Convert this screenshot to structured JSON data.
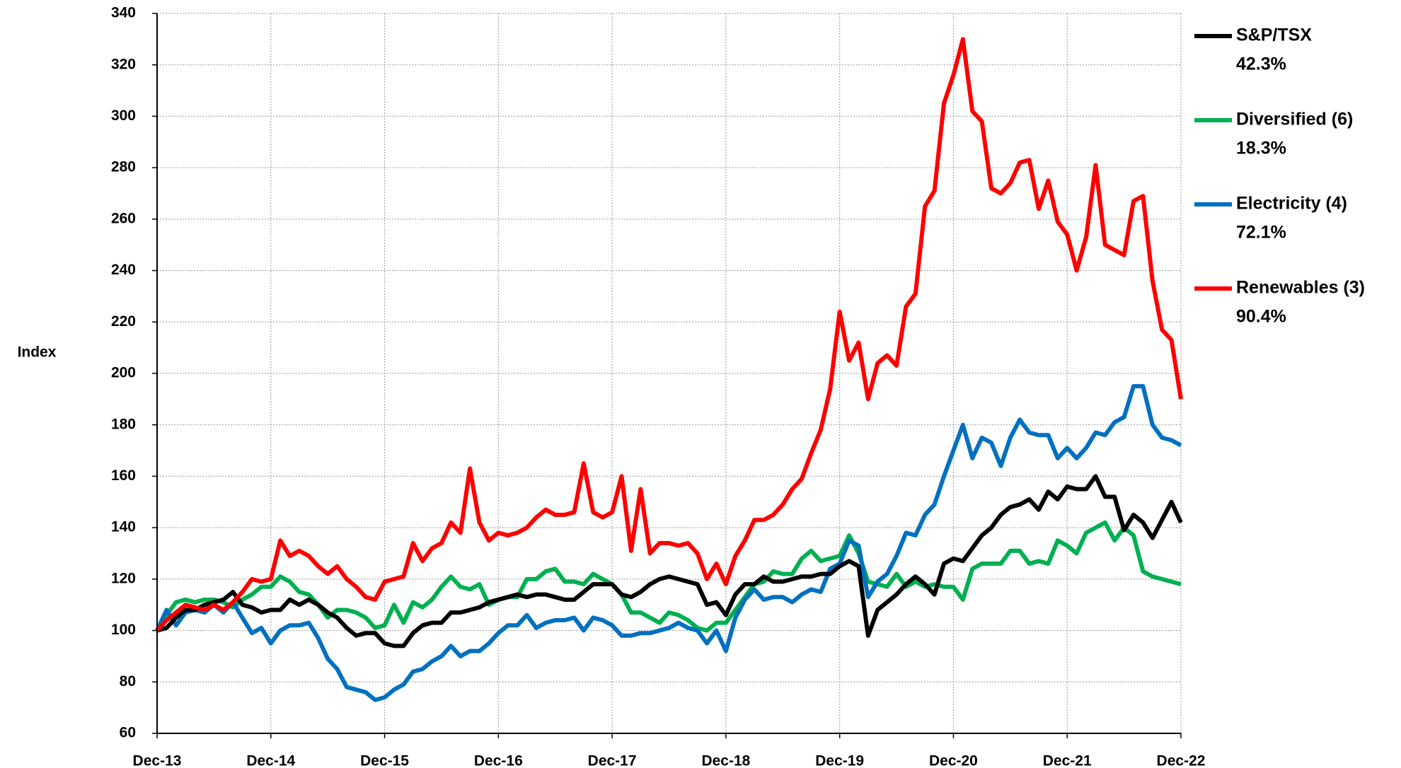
{
  "chart_data": {
    "type": "line",
    "y_label": "Index",
    "categories": [
      "Dec-13",
      null,
      null,
      null,
      null,
      null,
      null,
      null,
      null,
      null,
      null,
      null,
      "Dec-14",
      null,
      null,
      null,
      null,
      null,
      null,
      null,
      null,
      null,
      null,
      null,
      "Dec-15",
      null,
      null,
      null,
      null,
      null,
      null,
      null,
      null,
      null,
      null,
      null,
      "Dec-16",
      null,
      null,
      null,
      null,
      null,
      null,
      null,
      null,
      null,
      null,
      null,
      "Dec-17",
      null,
      null,
      null,
      null,
      null,
      null,
      null,
      null,
      null,
      null,
      null,
      "Dec-18",
      null,
      null,
      null,
      null,
      null,
      null,
      null,
      null,
      null,
      null,
      null,
      "Dec-19",
      null,
      null,
      null,
      null,
      null,
      null,
      null,
      null,
      null,
      null,
      null,
      "Dec-20",
      null,
      null,
      null,
      null,
      null,
      null,
      null,
      null,
      null,
      null,
      null,
      "Dec-21",
      null,
      null,
      null,
      null,
      null,
      null,
      null,
      null,
      null,
      null,
      null,
      "Dec-22"
    ],
    "ylim": [
      60,
      340
    ],
    "yticks": [
      60,
      80,
      100,
      120,
      140,
      160,
      180,
      200,
      220,
      240,
      260,
      280,
      300,
      320,
      340
    ],
    "grid": true,
    "series": [
      {
        "name": "S&P/TSX",
        "total_return": "42.3%",
        "color": "#000000",
        "values": [
          100,
          101,
          105,
          108,
          108,
          110,
          111,
          112,
          115,
          110,
          109,
          107,
          108,
          108,
          112,
          110,
          112,
          110,
          107,
          105,
          101,
          98,
          99,
          99,
          95,
          94,
          94,
          99,
          102,
          103,
          103,
          107,
          107,
          108,
          109,
          111,
          112,
          113,
          114,
          113,
          114,
          114,
          113,
          112,
          112,
          115,
          118,
          118,
          118,
          114,
          113,
          115,
          118,
          120,
          121,
          120,
          119,
          118,
          110,
          111,
          106,
          114,
          118,
          118,
          121,
          119,
          119,
          120,
          121,
          121,
          122,
          122,
          125,
          127,
          125,
          98,
          108,
          111,
          114,
          118,
          121,
          118,
          114,
          126,
          128,
          127,
          132,
          137,
          140,
          145,
          148,
          149,
          151,
          147,
          154,
          151,
          156,
          155,
          155,
          160,
          152,
          152,
          139,
          145,
          142,
          136,
          143,
          150,
          142
        ]
      },
      {
        "name": "Diversified (6)",
        "total_return": "18.3%",
        "color": "#00b050",
        "values": [
          100,
          106,
          111,
          112,
          111,
          112,
          112,
          111,
          109,
          112,
          114,
          117,
          117,
          121,
          119,
          115,
          114,
          110,
          105,
          108,
          108,
          107,
          105,
          101,
          102,
          110,
          103,
          111,
          109,
          112,
          117,
          121,
          117,
          116,
          118,
          110,
          112,
          113,
          113,
          120,
          120,
          123,
          124,
          119,
          119,
          118,
          122,
          120,
          118,
          114,
          107,
          107,
          105,
          103,
          107,
          106,
          104,
          101,
          100,
          103,
          103,
          108,
          113,
          118,
          119,
          123,
          122,
          122,
          128,
          131,
          127,
          128,
          129,
          137,
          130,
          119,
          118,
          117,
          122,
          117,
          119,
          117,
          118,
          117,
          117,
          112,
          124,
          126,
          126,
          126,
          131,
          131,
          126,
          127,
          126,
          135,
          133,
          130,
          138,
          140,
          142,
          135,
          140,
          137,
          123,
          121,
          120,
          119,
          118
        ]
      },
      {
        "name": "Electricity (4)",
        "total_return": "72.1%",
        "color": "#0070c0",
        "values": [
          100,
          108,
          102,
          107,
          108,
          107,
          110,
          107,
          111,
          105,
          99,
          101,
          95,
          100,
          102,
          102,
          103,
          97,
          89,
          85,
          78,
          77,
          76,
          73,
          74,
          77,
          79,
          84,
          85,
          88,
          90,
          94,
          90,
          92,
          92,
          95,
          99,
          102,
          102,
          106,
          101,
          103,
          104,
          104,
          105,
          100,
          105,
          104,
          102,
          98,
          98,
          99,
          99,
          100,
          101,
          103,
          101,
          100,
          95,
          100,
          92,
          105,
          112,
          116,
          112,
          113,
          113,
          111,
          114,
          116,
          115,
          124,
          126,
          135,
          133,
          113,
          119,
          122,
          129,
          138,
          137,
          145,
          149,
          160,
          170,
          180,
          167,
          175,
          173,
          164,
          175,
          182,
          177,
          176,
          176,
          167,
          171,
          167,
          171,
          177,
          176,
          181,
          183,
          195,
          195,
          180,
          175,
          174,
          172
        ]
      },
      {
        "name": "Renewables (3)",
        "total_return": "90.4%",
        "color": "#ff0000",
        "values": [
          100,
          104,
          107,
          110,
          109,
          108,
          110,
          108,
          111,
          115,
          120,
          119,
          120,
          135,
          129,
          131,
          129,
          125,
          122,
          125,
          120,
          117,
          113,
          112,
          119,
          120,
          121,
          134,
          127,
          132,
          134,
          142,
          138,
          163,
          142,
          135,
          138,
          137,
          138,
          140,
          144,
          147,
          145,
          145,
          146,
          165,
          146,
          144,
          146,
          160,
          131,
          155,
          130,
          134,
          134,
          133,
          134,
          130,
          120,
          126,
          118,
          129,
          135,
          143,
          143,
          145,
          149,
          155,
          159,
          169,
          178,
          194,
          224,
          205,
          212,
          190,
          204,
          207,
          203,
          226,
          231,
          265,
          271,
          305,
          316,
          330,
          302,
          298,
          272,
          270,
          274,
          282,
          283,
          264,
          275,
          259,
          254,
          240,
          253,
          281,
          250,
          248,
          246,
          267,
          269,
          236,
          217,
          213,
          190
        ]
      }
    ]
  }
}
